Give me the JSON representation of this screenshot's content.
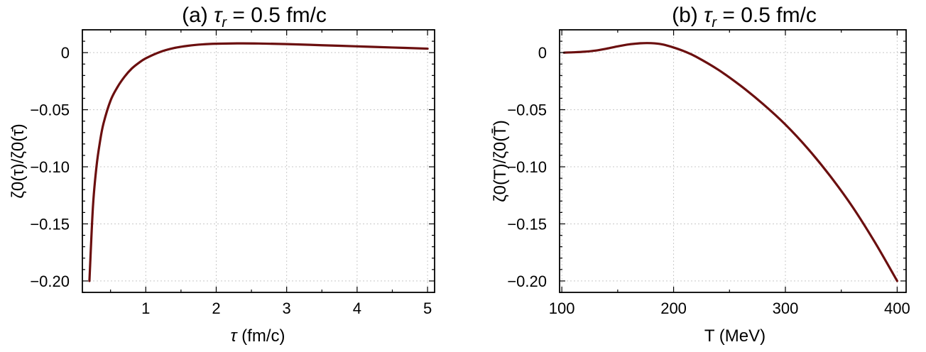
{
  "colors": {
    "curve": "#6b0f0f",
    "frame": "#000000",
    "grid": "#c8c8c8"
  },
  "chart_data": [
    {
      "type": "line",
      "title": "(a) τ_r = 0.5 fm/c",
      "title_parts": {
        "prefix": "(a) ",
        "symbol": "τ",
        "subscript": "r",
        "suffix": " = 0.5 fm/c"
      },
      "xlabel": "τ (fm/c)",
      "xlabel_parts": {
        "symbol": "τ",
        "rest": " (fm/c)"
      },
      "ylabel": "ζ0(τ)/ζ0(τ̄)",
      "xlim": [
        0.1,
        5.1
      ],
      "ylim": [
        -0.21,
        0.02
      ],
      "grid": true,
      "xticks": [
        1,
        2,
        3,
        4,
        5
      ],
      "xtick_labels": [
        "1",
        "2",
        "3",
        "4",
        "5"
      ],
      "yticks": [
        0,
        -0.05,
        -0.1,
        -0.15,
        -0.2
      ],
      "ytick_labels": [
        "0",
        "−0.05",
        "−0.10",
        "−0.15",
        "−0.20"
      ],
      "series": [
        {
          "x": [
            0.2,
            0.25,
            0.3,
            0.35,
            0.4,
            0.5,
            0.6,
            0.7,
            0.8,
            0.9,
            1.0,
            1.2,
            1.4,
            1.6,
            1.8,
            2.0,
            2.3,
            2.6,
            3.0,
            3.5,
            4.0,
            4.5,
            5.0
          ],
          "y": [
            -0.2,
            -0.135,
            -0.1,
            -0.078,
            -0.062,
            -0.042,
            -0.03,
            -0.021,
            -0.014,
            -0.009,
            -0.005,
            0.0005,
            0.004,
            0.006,
            0.0072,
            0.0078,
            0.0081,
            0.008,
            0.0075,
            0.0065,
            0.0055,
            0.0045,
            0.0035
          ]
        }
      ]
    },
    {
      "type": "line",
      "title": "(b) τ_r = 0.5 fm/c",
      "title_parts": {
        "prefix": "(b) ",
        "symbol": "τ",
        "subscript": "r",
        "suffix": " = 0.5 fm/c"
      },
      "xlabel": "T (MeV)",
      "ylabel": "ζ0(T)/ζ0(T̄)",
      "xlim": [
        98,
        408
      ],
      "ylim": [
        -0.21,
        0.02
      ],
      "grid": true,
      "xticks": [
        100,
        200,
        300,
        400
      ],
      "xtick_labels": [
        "100",
        "200",
        "300",
        "400"
      ],
      "yticks": [
        0,
        -0.05,
        -0.1,
        -0.15,
        -0.2
      ],
      "ytick_labels": [
        "0",
        "−0.05",
        "−0.10",
        "−0.15",
        "−0.20"
      ],
      "series": [
        {
          "x": [
            102,
            110,
            120,
            130,
            140,
            150,
            160,
            170,
            180,
            190,
            200,
            210,
            220,
            240,
            260,
            280,
            300,
            320,
            340,
            360,
            380,
            400
          ],
          "y": [
            0.0,
            0.0003,
            0.0008,
            0.0018,
            0.0035,
            0.0055,
            0.0072,
            0.0082,
            0.0083,
            0.0072,
            0.0045,
            0.001,
            -0.0035,
            -0.015,
            -0.029,
            -0.045,
            -0.063,
            -0.084,
            -0.108,
            -0.135,
            -0.166,
            -0.2
          ]
        }
      ]
    }
  ]
}
